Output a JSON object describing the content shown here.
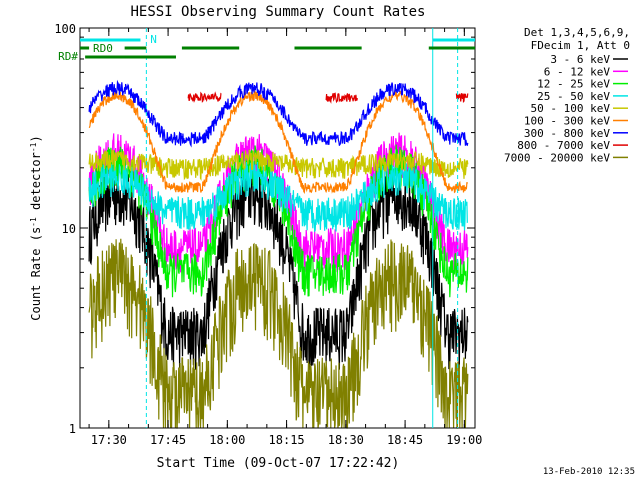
{
  "chart_data": {
    "type": "line",
    "title": "HESSI Observing Summary Count Rates",
    "xlabel": "Start Time (09-Oct-07 17:22:42)",
    "ylabel": "Count Rate (s⁻¹ detector⁻¹)",
    "yscale": "log",
    "ylim": [
      1,
      100
    ],
    "xlim_minutes": [
      22.7,
      122.7
    ],
    "x_ticks": [
      "17:30",
      "17:45",
      "18:00",
      "18:15",
      "18:30",
      "18:45",
      "19:00"
    ],
    "y_ticks": [
      "1",
      "10",
      "100"
    ],
    "date_stamp": "13-Feb-2010 12:35",
    "legend": {
      "header": [
        "Det 1,3,4,5,6,9,",
        "FDecim 1, Att 0"
      ],
      "position": "right"
    },
    "flags": [
      {
        "label": "N",
        "color": "#00e5e5"
      },
      {
        "label": "RD0",
        "color": "#008000"
      },
      {
        "label": "RD#",
        "color": "#008000"
      }
    ],
    "night_markers_minutes": [
      39.5,
      118.3
    ],
    "series": [
      {
        "name": "3 - 6 keV",
        "color": "#000000",
        "night": 15,
        "day": 3,
        "noise": 0.35
      },
      {
        "name": "6 - 12 keV",
        "color": "#ff00ff",
        "night": 24,
        "day": 8,
        "noise": 0.25
      },
      {
        "name": "12 - 25 keV",
        "color": "#00ee00",
        "night": 21,
        "day": 6,
        "noise": 0.25
      },
      {
        "name": "25 - 50 keV",
        "color": "#00e5e5",
        "night": 18,
        "day": 12,
        "noise": 0.2
      },
      {
        "name": "50 - 100 keV",
        "color": "#c8c800",
        "night": 22,
        "day": 20,
        "noise": 0.12
      },
      {
        "name": "100 - 300 keV",
        "color": "#ff7f00",
        "night": 46,
        "day": 16,
        "noise": 0.06
      },
      {
        "name": "300 - 800 keV",
        "color": "#0000ff",
        "night": 50,
        "day": 28,
        "noise": 0.08
      },
      {
        "name": "800 - 7000 keV",
        "color": "#e00000",
        "night": 0,
        "day": 45,
        "noise": 0.05
      },
      {
        "name": "7000 - 20000 keV",
        "color": "#808000",
        "night": 6,
        "day": 1.5,
        "noise": 0.5
      }
    ]
  }
}
